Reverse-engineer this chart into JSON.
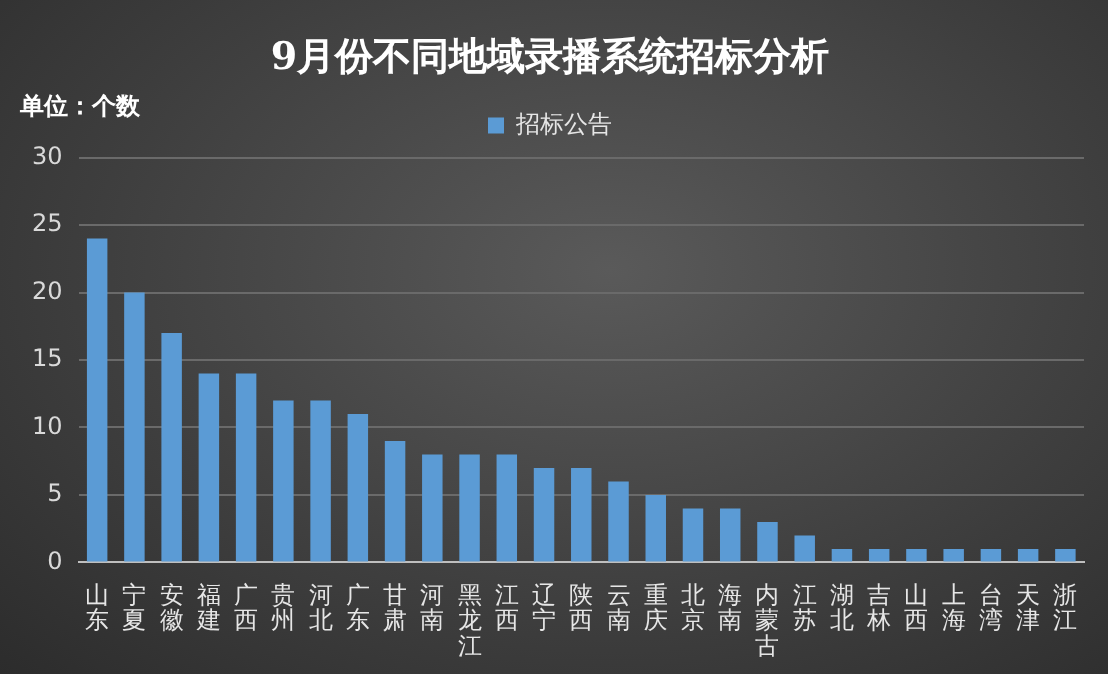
{
  "chart_data": {
    "type": "bar",
    "title": "9月份不同地域录播系统招标分析",
    "ylabel": "单位：个数",
    "categories": [
      "山东",
      "宁夏",
      "安徽",
      "福建",
      "广西",
      "贵州",
      "河北",
      "广东",
      "甘肃",
      "河南",
      "黑龙江",
      "江西",
      "辽宁",
      "陕西",
      "云南",
      "重庆",
      "北京",
      "海南",
      "内蒙古",
      "江苏",
      "湖北",
      "吉林",
      "山西",
      "上海",
      "台湾",
      "天津",
      "浙江"
    ],
    "series": [
      {
        "name": "招标公告",
        "color": "#5b9bd5",
        "values": [
          24,
          20,
          17,
          14,
          14,
          12,
          12,
          11,
          9,
          8,
          8,
          8,
          7,
          7,
          6,
          5,
          4,
          4,
          3,
          2,
          1,
          1,
          1,
          1,
          1,
          1,
          1
        ]
      }
    ],
    "ylim": [
      0,
      30
    ],
    "yticks": [
      0,
      5,
      10,
      15,
      20,
      25,
      30
    ],
    "grid": "y",
    "legend": "top"
  }
}
